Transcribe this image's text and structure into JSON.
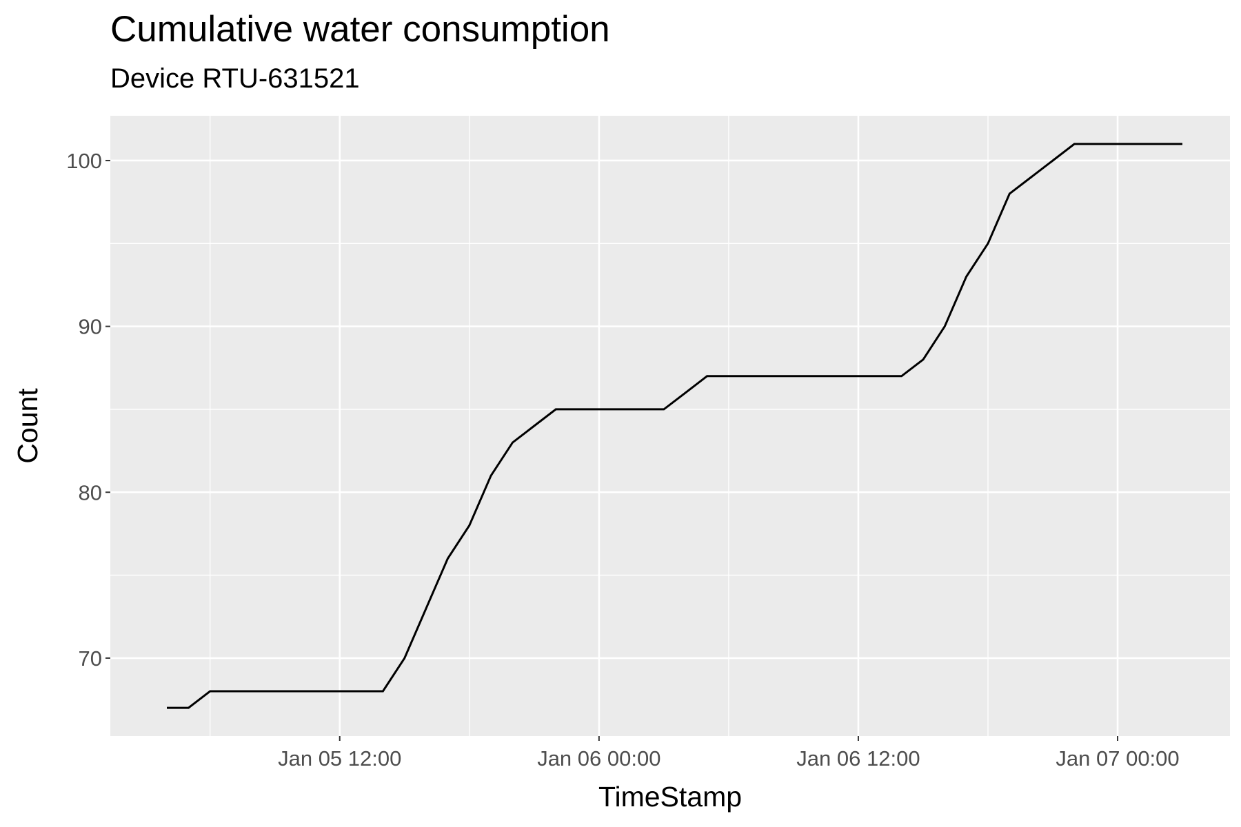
{
  "chart_data": {
    "type": "line",
    "title": "Cumulative water consumption",
    "subtitle": "Device RTU-631521",
    "xlabel": "TimeStamp",
    "ylabel": "Count",
    "x_ticks": [
      "Jan 05 12:00",
      "Jan 06 00:00",
      "Jan 06 12:00",
      "Jan 07 00:00"
    ],
    "y_ticks": [
      70,
      80,
      90,
      100
    ],
    "xlim": [
      "Jan 05 01:23",
      "Jan 07 05:12"
    ],
    "ylim": [
      65.3,
      102.7
    ],
    "grid": true,
    "background": "#EBEBEB",
    "line_color": "#000000",
    "series": [
      {
        "x": [
          "Jan 05 04:00",
          "Jan 05 05:00",
          "Jan 05 06:00",
          "Jan 05 07:00",
          "Jan 05 08:00",
          "Jan 05 09:00",
          "Jan 05 10:00",
          "Jan 05 11:00",
          "Jan 05 12:00",
          "Jan 05 13:00",
          "Jan 05 14:00",
          "Jan 05 15:00",
          "Jan 05 16:00",
          "Jan 05 17:00",
          "Jan 05 18:00",
          "Jan 05 19:00",
          "Jan 05 20:00",
          "Jan 05 21:00",
          "Jan 05 22:00",
          "Jan 05 23:00",
          "Jan 06 00:00",
          "Jan 06 01:00",
          "Jan 06 02:00",
          "Jan 06 03:00",
          "Jan 06 04:00",
          "Jan 06 05:00",
          "Jan 06 06:00",
          "Jan 06 07:00",
          "Jan 06 08:00",
          "Jan 06 09:00",
          "Jan 06 10:00",
          "Jan 06 11:00",
          "Jan 06 12:00",
          "Jan 06 13:00",
          "Jan 06 14:00",
          "Jan 06 15:00",
          "Jan 06 16:00",
          "Jan 06 17:00",
          "Jan 06 18:00",
          "Jan 06 19:00",
          "Jan 06 20:00",
          "Jan 06 21:00",
          "Jan 06 22:00",
          "Jan 06 23:00",
          "Jan 07 00:00",
          "Jan 07 01:00",
          "Jan 07 02:00",
          "Jan 07 03:00"
        ],
        "y": [
          67,
          67,
          68,
          68,
          68,
          68,
          68,
          68,
          68,
          68,
          68,
          70,
          73,
          76,
          78,
          81,
          83,
          84,
          85,
          85,
          85,
          85,
          85,
          85,
          86,
          87,
          87,
          87,
          87,
          87,
          87,
          87,
          87,
          87,
          87,
          88,
          90,
          93,
          95,
          98,
          99,
          100,
          101,
          101,
          101,
          101,
          101,
          101
        ]
      }
    ]
  }
}
